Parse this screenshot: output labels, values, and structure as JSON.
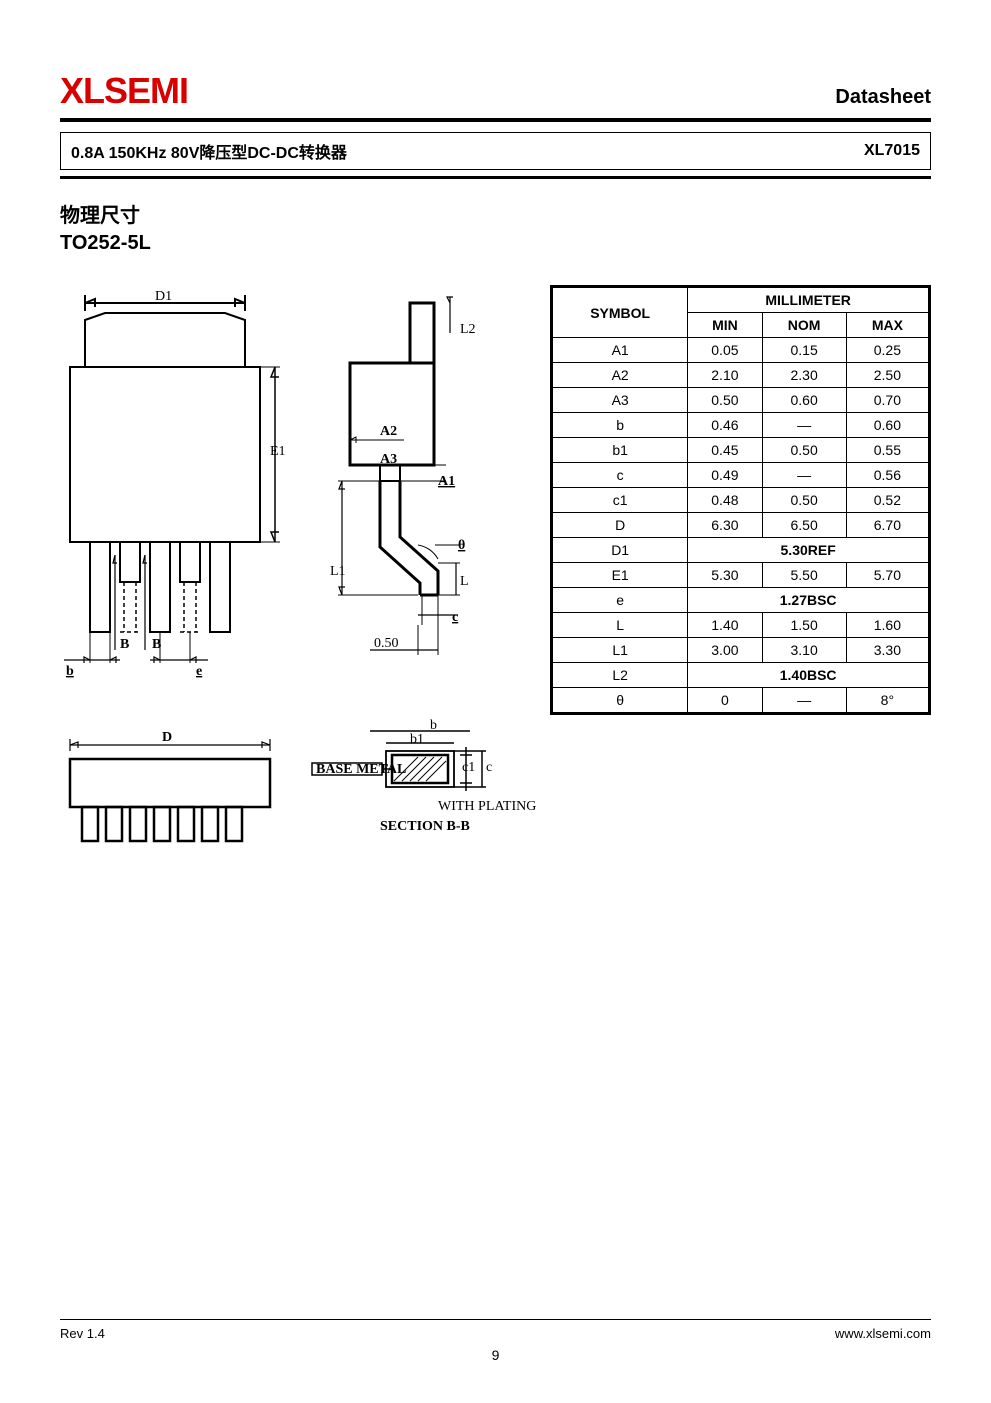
{
  "header": {
    "brand": "XLSEMI",
    "brand_color": "#d90000",
    "doctype": "Datasheet"
  },
  "subtitle": {
    "left": "0.8A 150KHz 80V降压型DC-DC转换器",
    "right": "XL7015"
  },
  "section": {
    "title_cn": "物理尺寸",
    "title_en": "TO252-5L"
  },
  "diagram_labels": {
    "front": {
      "D1": "D1",
      "E1": "E1",
      "B": "B",
      "b": "b",
      "e": "e"
    },
    "side": {
      "L2": "L2",
      "A2": "A2",
      "A3": "A3",
      "A1": "A1",
      "theta": "θ",
      "L1": "L1",
      "L": "L",
      "c": "c",
      "val050": "0.50"
    },
    "bottom": {
      "D": "D"
    },
    "section": {
      "b": "b",
      "b1": "b1",
      "c1": "c1",
      "c": "c",
      "base_metal": "BASE METAL",
      "with_plating": "WITH PLATING",
      "section_label": "SECTION B-B"
    }
  },
  "dim_table": {
    "header_symbol": "SYMBOL",
    "header_mm": "MILLIMETER",
    "header_min": "MIN",
    "header_nom": "NOM",
    "header_max": "MAX",
    "rows": [
      {
        "sym": "A1",
        "min": "0.05",
        "nom": "0.15",
        "max": "0.25"
      },
      {
        "sym": "A2",
        "min": "2.10",
        "nom": "2.30",
        "max": "2.50"
      },
      {
        "sym": "A3",
        "min": "0.50",
        "nom": "0.60",
        "max": "0.70"
      },
      {
        "sym": "b",
        "min": "0.46",
        "nom": "—",
        "max": "0.60"
      },
      {
        "sym": "b1",
        "min": "0.45",
        "nom": "0.50",
        "max": "0.55"
      },
      {
        "sym": "c",
        "min": "0.49",
        "nom": "—",
        "max": "0.56"
      },
      {
        "sym": "c1",
        "min": "0.48",
        "nom": "0.50",
        "max": "0.52"
      },
      {
        "sym": "D",
        "min": "6.30",
        "nom": "6.50",
        "max": "6.70"
      },
      {
        "sym": "D1",
        "span": "5.30REF"
      },
      {
        "sym": "E1",
        "min": "5.30",
        "nom": "5.50",
        "max": "5.70"
      },
      {
        "sym": "e",
        "span": "1.27BSC"
      },
      {
        "sym": "L",
        "min": "1.40",
        "nom": "1.50",
        "max": "1.60"
      },
      {
        "sym": "L1",
        "min": "3.00",
        "nom": "3.10",
        "max": "3.30"
      },
      {
        "sym": "L2",
        "span": "1.40BSC"
      },
      {
        "sym": "θ",
        "min": "0",
        "nom": "—",
        "max": "8°"
      }
    ]
  },
  "footer": {
    "rev": "Rev 1.4",
    "url": "www.xlsemi.com",
    "page": "9"
  },
  "style": {
    "text_color": "#000000",
    "background": "#ffffff",
    "border_color": "#000000",
    "table_border_width": 1.5,
    "title_fontsize": 20,
    "body_fontsize": 14
  }
}
